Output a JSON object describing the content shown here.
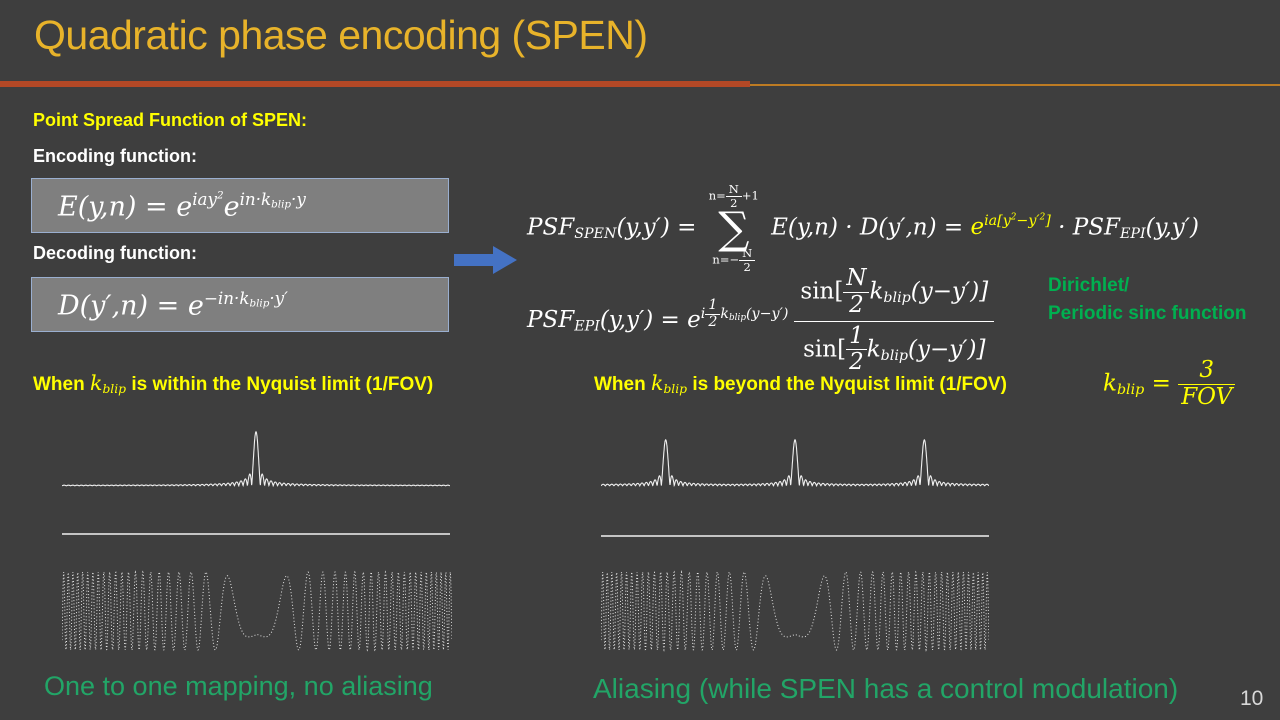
{
  "slide": {
    "title": "Quadratic phase encoding (SPEN)",
    "page_number": "10"
  },
  "icons": {
    "flow_arrow": "right-arrow"
  },
  "theme": {
    "bg": "#3E3E3E",
    "title_gold": "#E8B32A",
    "accent_rust": "#B34826",
    "accent_orange": "#BD7B23",
    "yellow": "#FFFF00",
    "green_note": "#00B050",
    "green_caption": "#22A567",
    "box_fill": "#7F7F7F",
    "box_border": "#9AAFD0",
    "arrow_blue": "#4472C4",
    "page_gray": "#D9D9D9",
    "plot_line": "#F0F0F0"
  },
  "labels": {
    "psf_header": "Point Spread Function of SPEN:",
    "encoding": "Encoding function:",
    "decoding": "Decoding function:",
    "dirichlet_line1": "Dirichlet/",
    "dirichlet_line2": "Periodic sinc function",
    "caption_left": "One to one mapping, no aliasing",
    "caption_right": "Aliasing (while SPEN has a control modulation)"
  },
  "equations": {
    "encoding": [
      "E(y,n) = e",
      {
        "c": "sup",
        "ch": [
          "iay",
          {
            "c": "sup",
            "ch": [
              "2"
            ]
          }
        ]
      },
      "e",
      {
        "c": "sup",
        "ch": [
          "in·k",
          {
            "c": "sub",
            "ch": [
              "blip"
            ]
          },
          "·y"
        ]
      }
    ],
    "decoding": [
      "D(y′,n) = e",
      {
        "c": "sup",
        "ch": [
          "−in·k",
          {
            "c": "sub",
            "ch": [
              "blip"
            ]
          },
          "·y′"
        ]
      }
    ],
    "psf_spen": [
      "PSF",
      {
        "c": "sub",
        "ch": [
          "SPEN"
        ]
      },
      "(y,y′) = ",
      {
        "big": {
          "op": "∑",
          "top": [
            "n=",
            {
              "f": {
                "n": [
                  "N"
                ],
                "d": [
                  "2"
                ]
              }
            },
            "+1"
          ],
          "bot": [
            "n=−",
            {
              "f": {
                "n": [
                  "N"
                ],
                "d": [
                  "2"
                ]
              }
            }
          ]
        }
      },
      " E(y,n) · D(y′,n) = ",
      {
        "c": "yellow",
        "ch": [
          "e",
          {
            "c": "sup",
            "ch": [
              "ia[y",
              {
                "c": "sup",
                "ch": [
                  "2"
                ]
              },
              "−y′",
              {
                "c": "sup",
                "ch": [
                  "2"
                ]
              },
              "]"
            ]
          }
        ]
      },
      " · PSF",
      {
        "c": "sub",
        "ch": [
          "EPI"
        ]
      },
      "(y,y′)"
    ],
    "psf_epi": [
      "PSF",
      {
        "c": "sub",
        "ch": [
          "EPI"
        ]
      },
      "(y,y′) = e",
      {
        "c": "sup",
        "ch": [
          "i",
          {
            "f": {
              "n": [
                "1"
              ],
              "d": [
                "2"
              ]
            }
          },
          "k",
          {
            "c": "sub",
            "ch": [
              "blip"
            ]
          },
          "(y−y′)"
        ]
      },
      {
        "c": "bigfrac",
        "f": {
          "n": [
            {
              "c": "up",
              "ch": [
                "sin["
              ]
            },
            {
              "f": {
                "n": [
                  "N"
                ],
                "d": [
                  "2"
                ]
              }
            },
            "k",
            {
              "c": "sub",
              "ch": [
                "blip"
              ]
            },
            "(y−y′)]"
          ],
          "d": [
            {
              "c": "up",
              "ch": [
                "sin["
              ]
            },
            {
              "f": {
                "n": [
                  "1"
                ],
                "d": [
                  "2"
                ]
              }
            },
            "k",
            {
              "c": "sub",
              "ch": [
                "blip"
              ]
            },
            "(y−y′)]"
          ]
        }
      }
    ],
    "kblip": [
      "k",
      {
        "c": "sub",
        "ch": [
          "blip"
        ]
      },
      " = ",
      {
        "f": {
          "n": [
            "3"
          ],
          "d": [
            "FOV"
          ]
        }
      }
    ],
    "when_left": [
      {
        "c": "plain",
        "ch": [
          "When "
        ]
      },
      {
        "c": "mi",
        "ch": [
          "k",
          {
            "c": "sub",
            "ch": [
              "blip"
            ]
          }
        ]
      },
      {
        "c": "plain",
        "ch": [
          " is within the Nyquist limit (1/FOV)"
        ]
      }
    ],
    "when_right": [
      {
        "c": "plain",
        "ch": [
          "When "
        ]
      },
      {
        "c": "mi",
        "ch": [
          "k",
          {
            "c": "sub",
            "ch": [
              "blip"
            ]
          }
        ]
      },
      {
        "c": "plain",
        "ch": [
          " is beyond the Nyquist limit (1/FOV)"
        ]
      }
    ]
  },
  "chart_data": [
    {
      "id": "psf_left",
      "type": "line",
      "subtype": "dirichlet",
      "label": "PSF when k_blip is within the Nyquist limit: single Dirichlet peak",
      "peak_positions_rel": [
        0.5
      ],
      "periods": 1,
      "N": 90,
      "peak_height_rel": 1.0,
      "x_range_rel": [
        0,
        1
      ],
      "line_color": "#F0F0F0"
    },
    {
      "id": "baseline_left",
      "type": "line",
      "subtype": "flat",
      "label": "flat baseline under left PSF"
    },
    {
      "id": "chirp_left",
      "type": "line",
      "subtype": "chirp",
      "label": "quadratic-phase (SPEN chirp) modulation, fast oscillation at edges, slow at center",
      "K": 550,
      "center_amp": 0.6,
      "amp_slope": 4,
      "style": "dotted",
      "line_color": "#E6E6E6"
    },
    {
      "id": "psf_right",
      "type": "line",
      "subtype": "dirichlet",
      "label": "PSF when k_blip is beyond the Nyquist limit: three aliased peaks",
      "peak_positions_rel": [
        0.1667,
        0.5,
        0.8333
      ],
      "periods": 3,
      "N": 30,
      "peak_height_rel": 1.0,
      "x_range_rel": [
        0,
        1
      ],
      "line_color": "#F0F0F0"
    },
    {
      "id": "baseline_right",
      "type": "line",
      "subtype": "flat",
      "label": "flat baseline under right PSF"
    },
    {
      "id": "chirp_right",
      "type": "line",
      "subtype": "chirp",
      "label": "quadratic-phase (SPEN chirp) modulation, fast oscillation at edges, slow at center",
      "K": 550,
      "center_amp": 0.6,
      "amp_slope": 4,
      "style": "dotted",
      "line_color": "#E6E6E6"
    }
  ]
}
